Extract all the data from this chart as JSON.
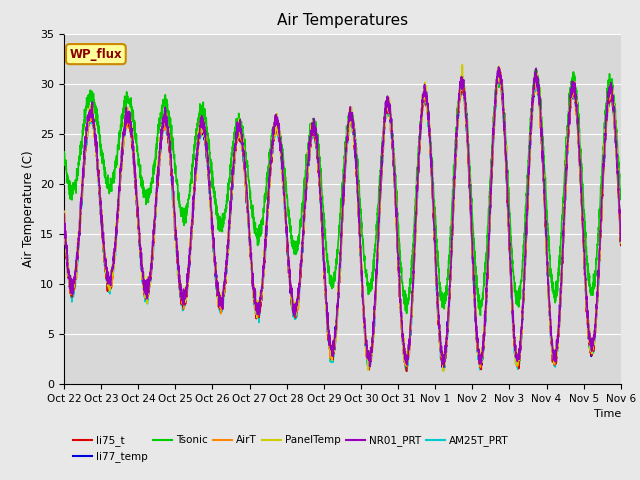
{
  "title": "Air Temperatures",
  "ylabel": "Air Temperature (C)",
  "xlabel": "Time",
  "ylim": [
    0,
    35
  ],
  "fig_facecolor": "#e8e8e8",
  "ax_facecolor": "#d8d8d8",
  "series": {
    "li75_t": {
      "color": "#dd0000",
      "lw": 1.2,
      "zorder": 6
    },
    "li77_temp": {
      "color": "#0000dd",
      "lw": 1.2,
      "zorder": 5
    },
    "Tsonic": {
      "color": "#00cc00",
      "lw": 1.2,
      "zorder": 3
    },
    "AirT": {
      "color": "#ff8800",
      "lw": 1.2,
      "zorder": 7
    },
    "PanelTemp": {
      "color": "#cccc00",
      "lw": 1.2,
      "zorder": 8
    },
    "NR01_PRT": {
      "color": "#9900bb",
      "lw": 1.2,
      "zorder": 9
    },
    "AM25T_PRT": {
      "color": "#00cccc",
      "lw": 1.2,
      "zorder": 4
    }
  },
  "xtick_labels": [
    "Oct 22",
    "Oct 23",
    "Oct 24",
    "Oct 25",
    "Oct 26",
    "Oct 27",
    "Oct 28",
    "Oct 29",
    "Oct 30",
    "Oct 31",
    "Nov 1",
    "Nov 2",
    "Nov 3",
    "Nov 4",
    "Nov 5",
    "Nov 6"
  ],
  "wp_flux_box": {
    "text": "WP_flux",
    "fc": "#ffff99",
    "ec": "#cc8800",
    "text_color": "#880000"
  },
  "n_points": 3360,
  "days": 15,
  "seed": 42
}
